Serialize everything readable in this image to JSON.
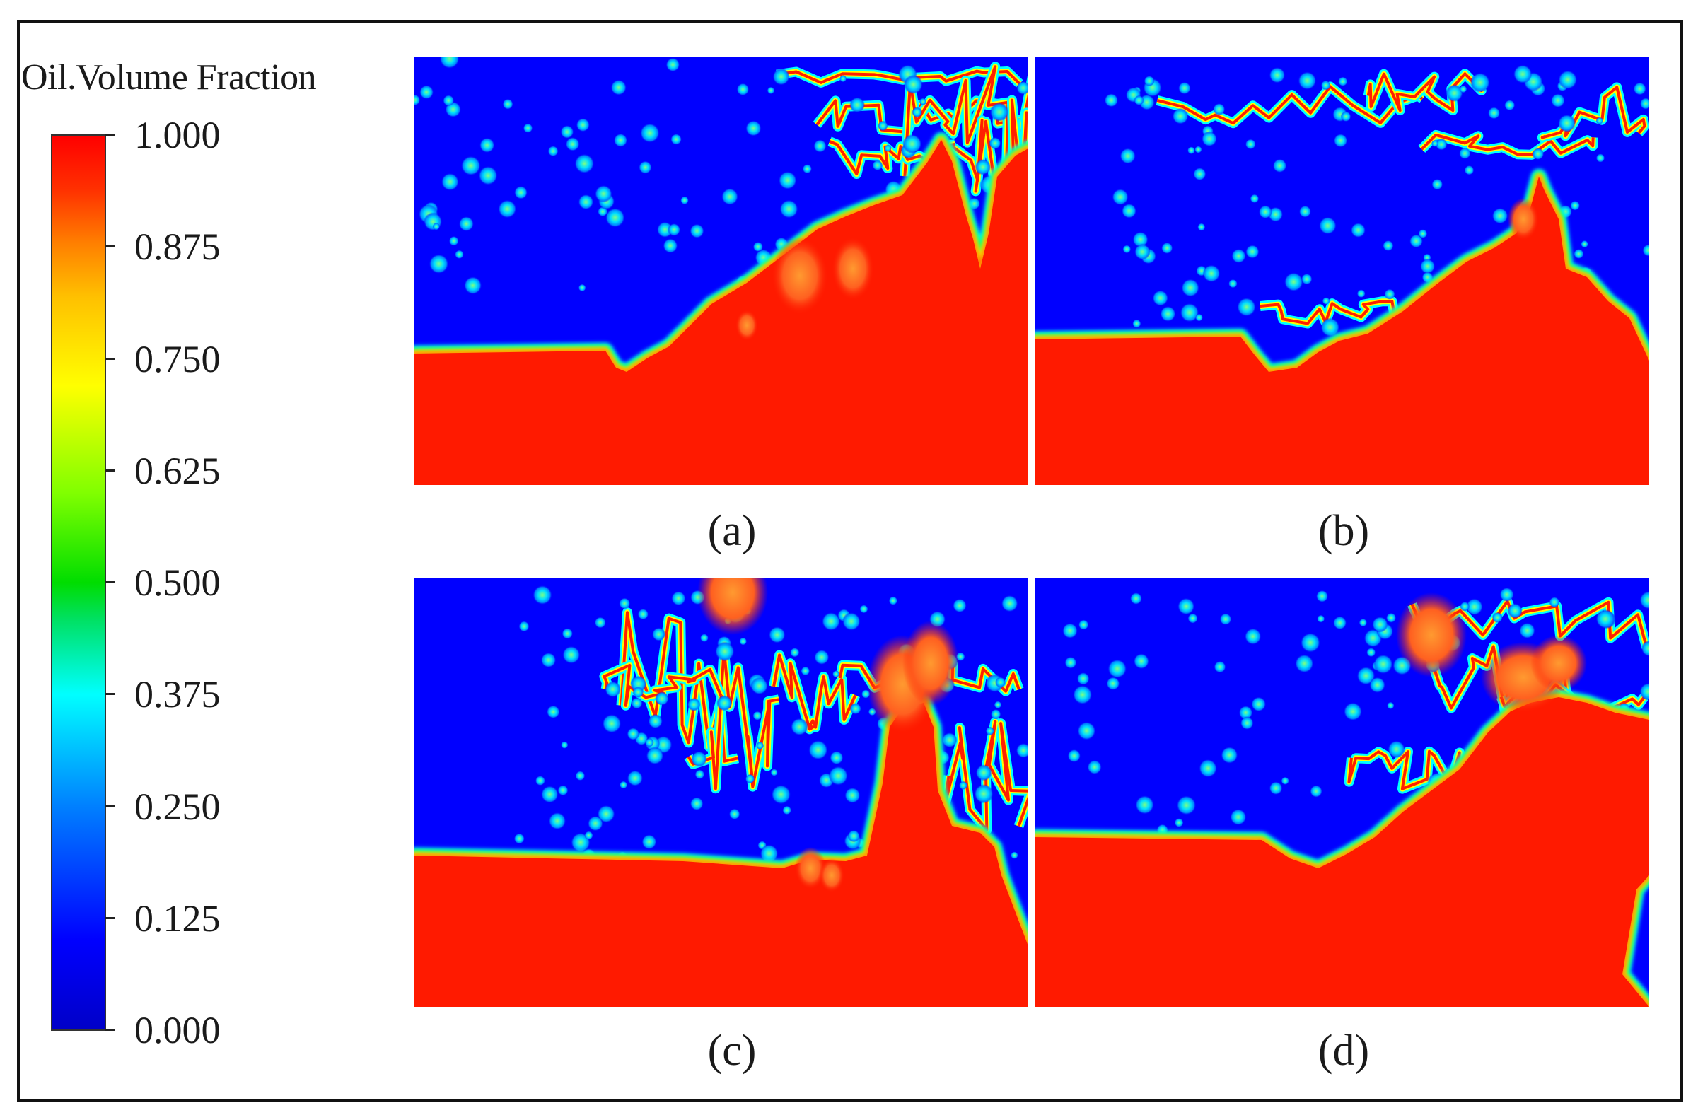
{
  "legend": {
    "title": "Oil.Volume Fraction",
    "ticks": [
      "1.000",
      "0.875",
      "0.750",
      "0.625",
      "0.500",
      "0.375",
      "0.250",
      "0.125",
      "0.000"
    ]
  },
  "panels": [
    {
      "label": "(a)"
    },
    {
      "label": "(b)"
    },
    {
      "label": "(c)"
    },
    {
      "label": "(d)"
    }
  ],
  "colors": {
    "oil": "#ff1a00",
    "water": "#0000ff",
    "interface": "#00ffff"
  }
}
